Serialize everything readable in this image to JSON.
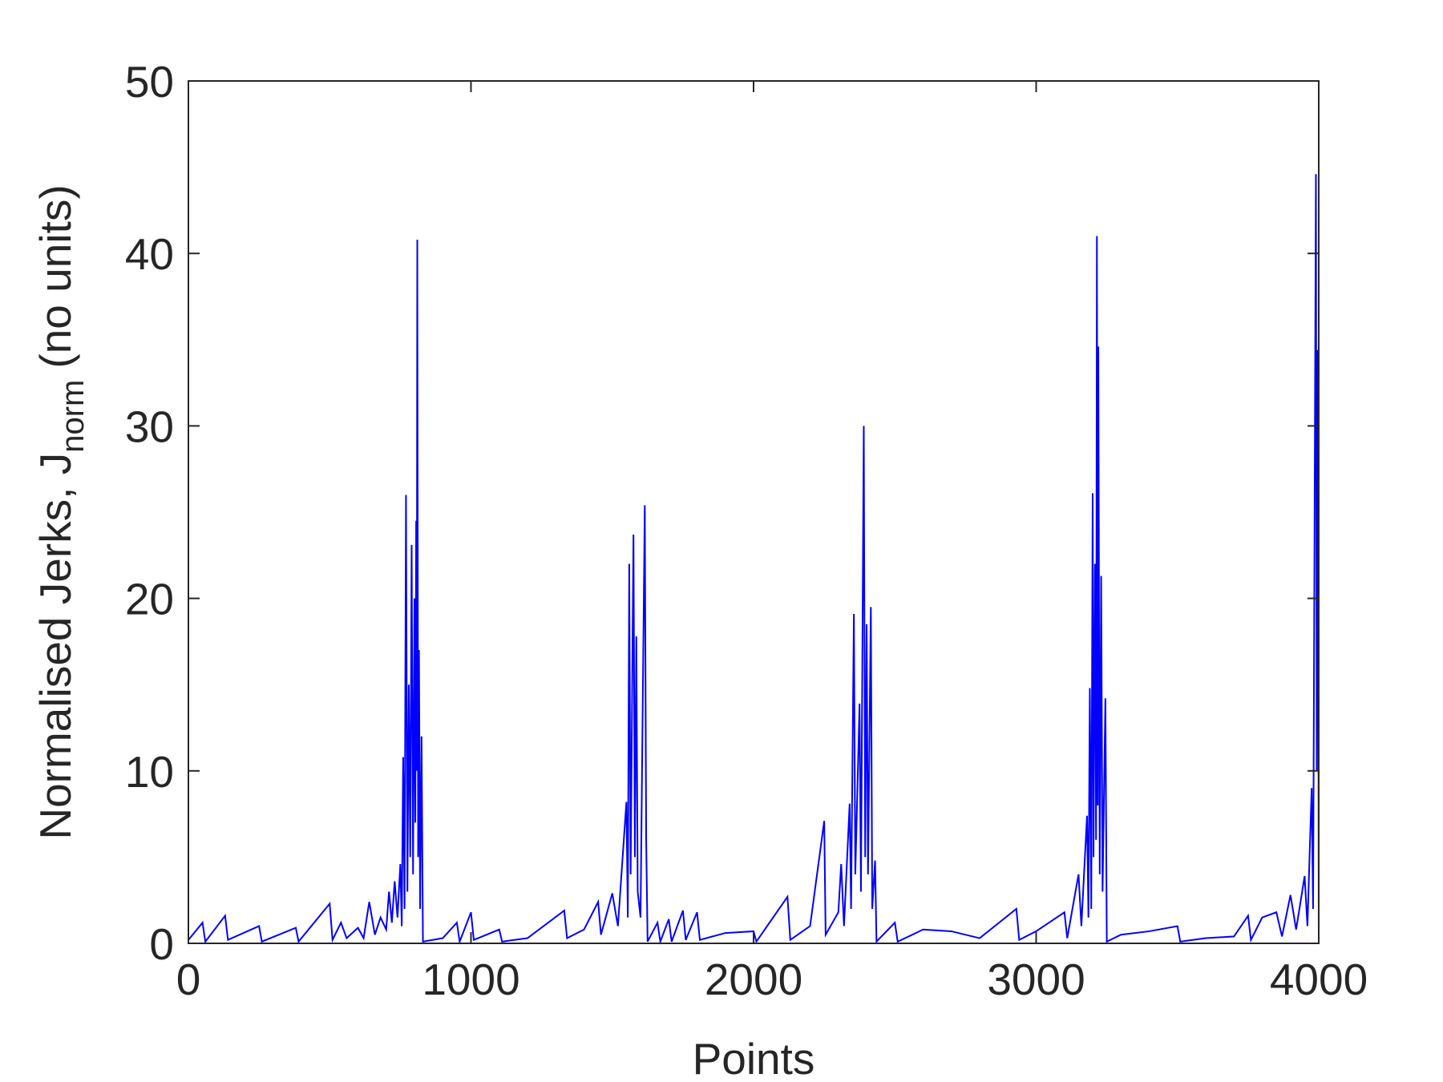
{
  "chart_data": {
    "type": "line",
    "xlabel": "Points",
    "ylabel": {
      "text": "Normalised Jerks, J",
      "subscript": "norm",
      "suffix": "(no units)"
    },
    "xlim": [
      0,
      4000
    ],
    "xticks": [
      0,
      1000,
      2000,
      3000,
      4000
    ],
    "ylim": [
      0,
      50
    ],
    "yticks": [
      0,
      10,
      20,
      30,
      40,
      50
    ],
    "grid": false,
    "series": [
      {
        "color": "#0000ff",
        "x": [
          0,
          50,
          60,
          130,
          140,
          250,
          260,
          380,
          390,
          500,
          510,
          540,
          560,
          600,
          620,
          640,
          660,
          680,
          700,
          710,
          720,
          730,
          740,
          750,
          755,
          760,
          765,
          770,
          775,
          780,
          785,
          790,
          795,
          800,
          803,
          806,
          808,
          810,
          813,
          816,
          820,
          825,
          830,
          900,
          950,
          960,
          1000,
          1010,
          1100,
          1110,
          1200,
          1330,
          1340,
          1400,
          1450,
          1460,
          1500,
          1520,
          1550,
          1555,
          1560,
          1565,
          1575,
          1580,
          1585,
          1590,
          1600,
          1615,
          1620,
          1625,
          1660,
          1670,
          1700,
          1710,
          1750,
          1760,
          1800,
          1810,
          1900,
          2000,
          2010,
          2120,
          2130,
          2200,
          2250,
          2255,
          2300,
          2310,
          2320,
          2340,
          2345,
          2355,
          2360,
          2375,
          2380,
          2390,
          2395,
          2400,
          2405,
          2415,
          2420,
          2430,
          2435,
          2500,
          2510,
          2600,
          2700,
          2800,
          2930,
          2940,
          3000,
          3100,
          3110,
          3150,
          3160,
          3180,
          3185,
          3190,
          3195,
          3200,
          3203,
          3208,
          3212,
          3215,
          3218,
          3220,
          3225,
          3230,
          3235,
          3245,
          3250,
          3300,
          3400,
          3500,
          3510,
          3600,
          3700,
          3750,
          3760,
          3800,
          3850,
          3870,
          3900,
          3920,
          3950,
          3960,
          3975,
          3980,
          3990,
          3993,
          3996,
          3999,
          4000
        ],
        "values": [
          0.2,
          1.2,
          0.1,
          1.6,
          0.2,
          1.0,
          0.1,
          0.9,
          0.1,
          2.3,
          0.2,
          1.2,
          0.3,
          0.9,
          0.3,
          2.4,
          0.5,
          1.5,
          0.8,
          3.0,
          1.2,
          3.6,
          1.5,
          4.6,
          1.0,
          10.8,
          2.0,
          26.0,
          3.0,
          15.0,
          5.0,
          23.1,
          4.0,
          20.0,
          7.0,
          24.5,
          10,
          40.8,
          5,
          17,
          2,
          12,
          0.1,
          0.3,
          1.2,
          0.1,
          1.8,
          0.2,
          0.8,
          0.1,
          0.3,
          1.9,
          0.3,
          0.8,
          2.4,
          0.5,
          2.9,
          1.0,
          8.2,
          1.5,
          22.0,
          4,
          23.7,
          5,
          17.8,
          3,
          1.5,
          25.4,
          6,
          0.1,
          1.2,
          0.1,
          1.4,
          0.1,
          1.9,
          0.2,
          1.8,
          0.2,
          0.6,
          0.7,
          0.1,
          2.7,
          0.2,
          1.0,
          7.1,
          0.5,
          1.8,
          4.6,
          1.0,
          8.1,
          2,
          19.1,
          4,
          13.9,
          3,
          30.0,
          5,
          18.5,
          4,
          19.5,
          2,
          4.8,
          0.1,
          1.2,
          0.1,
          0.8,
          0.7,
          0.3,
          2.0,
          0.2,
          0.7,
          1.8,
          0.3,
          4.0,
          1,
          7.4,
          1.5,
          14.8,
          2,
          26.1,
          5,
          22.0,
          6,
          41.0,
          8,
          34.6,
          4,
          21.3,
          3,
          14.2,
          0.1,
          0.5,
          0.7,
          1.0,
          0.1,
          0.3,
          0.4,
          1.6,
          0.2,
          1.5,
          1.8,
          0.4,
          2.8,
          0.8,
          3.9,
          1,
          9.0,
          2,
          44.6,
          10,
          34.4,
          12.8,
          0
        ]
      }
    ]
  }
}
